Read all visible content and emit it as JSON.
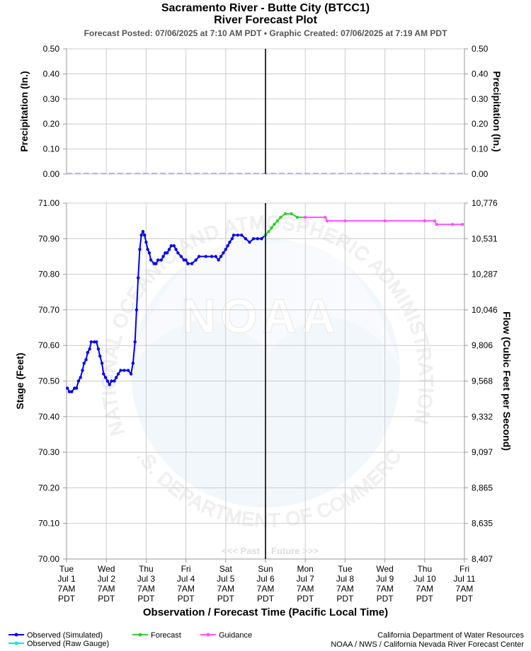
{
  "header": {
    "title": "Sacramento River - Butte City (BTCC1)",
    "subtitle": "River Forecast Plot",
    "posted": "Forecast Posted: 07/06/2025 at 7:10 AM PDT  •  Graphic Created: 07/06/2025 at 7:19 AM PDT"
  },
  "watermark": {
    "logo_text": "NOAA",
    "ring_text": "NATIONAL OCEANIC AND ATMOSPHERIC ADMINISTRATION",
    "ring_text_bottom": "U.S. DEPARTMENT OF COMMERCE"
  },
  "past_future": {
    "past": "<<< Past",
    "future": "Future >>>"
  },
  "legend": {
    "observed_sim": "Observed (Simulated)",
    "observed_raw": "Observed (Raw Gauge)",
    "forecast": "Forecast",
    "guidance": "Guidance"
  },
  "credits": {
    "line1": "California Department of Water Resources",
    "line2": "NOAA / NWS / California Nevada River Forecast Center"
  },
  "colors": {
    "observed": "#0000ee",
    "observed_raw": "#00e5ee",
    "forecast": "#33cc33",
    "guidance": "#ff55ff",
    "grid": "#cccccc",
    "now_line": "#333333",
    "precip_line": "#aaaaee"
  },
  "chart_data": [
    {
      "type": "line",
      "ylabel": "Precipitation (In.)",
      "ylabel_right": "Precipitation (In.)",
      "ylim": [
        0,
        0.5
      ],
      "y_ticks": [
        "0.00",
        "0.10",
        "0.20",
        "0.30",
        "0.40",
        "0.50"
      ],
      "grid": true,
      "series": [
        {
          "values": [
            [
              0,
              0
            ],
            [
              10,
              0
            ]
          ]
        }
      ]
    },
    {
      "type": "line",
      "xlabel": "Observation / Forecast Time (Pacific Local Time)",
      "ylabel": "Stage (Feet)",
      "ylabel_right": "Flow (Cubic Feet per Second)",
      "ylim": [
        70.0,
        71.0
      ],
      "xlim": [
        0,
        10
      ],
      "grid": true,
      "now_x": 5.0,
      "y_ticks": [
        "70.00",
        "70.10",
        "70.20",
        "70.30",
        "70.40",
        "70.50",
        "70.60",
        "70.70",
        "70.80",
        "70.90",
        "71.00"
      ],
      "y_ticks_right": [
        "8,407",
        "8,635",
        "8,865",
        "9,097",
        "9,332",
        "9,568",
        "9,806",
        "10,046",
        "10,287",
        "10,531",
        "10,776"
      ],
      "x_ticks": [
        [
          "Tue",
          "Jul 1",
          "7AM",
          "PDT"
        ],
        [
          "Wed",
          "Jul 2",
          "7AM",
          "PDT"
        ],
        [
          "Thu",
          "Jul 3",
          "7AM",
          "PDT"
        ],
        [
          "Fri",
          "Jul 4",
          "7AM",
          "PDT"
        ],
        [
          "Sat",
          "Jul 5",
          "7AM",
          "PDT"
        ],
        [
          "Sun",
          "Jul 6",
          "7AM",
          "PDT"
        ],
        [
          "Mon",
          "Jul 7",
          "7AM",
          "PDT"
        ],
        [
          "Tue",
          "Jul 8",
          "7AM",
          "PDT"
        ],
        [
          "Wed",
          "Jul 9",
          "7AM",
          "PDT"
        ],
        [
          "Thu",
          "Jul 10",
          "7AM",
          "PDT"
        ],
        [
          "Fri",
          "Jul 11",
          "7AM",
          "PDT"
        ]
      ],
      "series": [
        {
          "name": "Observed (Simulated)",
          "values": [
            [
              0.02,
              70.48
            ],
            [
              0.07,
              70.47
            ],
            [
              0.13,
              70.47
            ],
            [
              0.2,
              70.48
            ],
            [
              0.25,
              70.48
            ],
            [
              0.3,
              70.5
            ],
            [
              0.35,
              70.51
            ],
            [
              0.4,
              70.53
            ],
            [
              0.44,
              70.55
            ],
            [
              0.49,
              70.56
            ],
            [
              0.53,
              70.58
            ],
            [
              0.58,
              70.59
            ],
            [
              0.62,
              70.61
            ],
            [
              0.7,
              70.61
            ],
            [
              0.75,
              70.61
            ],
            [
              0.8,
              70.59
            ],
            [
              0.84,
              70.57
            ],
            [
              0.89,
              70.55
            ],
            [
              0.93,
              70.52
            ],
            [
              0.98,
              70.51
            ],
            [
              1.03,
              70.5
            ],
            [
              1.08,
              70.49
            ],
            [
              1.13,
              70.5
            ],
            [
              1.2,
              70.5
            ],
            [
              1.25,
              70.51
            ],
            [
              1.3,
              70.52
            ],
            [
              1.36,
              70.53
            ],
            [
              1.45,
              70.53
            ],
            [
              1.55,
              70.53
            ],
            [
              1.62,
              70.52
            ],
            [
              1.67,
              70.55
            ],
            [
              1.72,
              70.61
            ],
            [
              1.76,
              70.7
            ],
            [
              1.8,
              70.79
            ],
            [
              1.84,
              70.87
            ],
            [
              1.88,
              70.91
            ],
            [
              1.92,
              70.92
            ],
            [
              1.96,
              70.91
            ],
            [
              2.0,
              70.89
            ],
            [
              2.04,
              70.87
            ],
            [
              2.08,
              70.86
            ],
            [
              2.12,
              70.84
            ],
            [
              2.2,
              70.83
            ],
            [
              2.25,
              70.83
            ],
            [
              2.3,
              70.84
            ],
            [
              2.38,
              70.84
            ],
            [
              2.43,
              70.85
            ],
            [
              2.48,
              70.86
            ],
            [
              2.53,
              70.86
            ],
            [
              2.58,
              70.87
            ],
            [
              2.63,
              70.88
            ],
            [
              2.7,
              70.88
            ],
            [
              2.75,
              70.87
            ],
            [
              2.8,
              70.86
            ],
            [
              2.88,
              70.85
            ],
            [
              2.95,
              70.84
            ],
            [
              3.0,
              70.84
            ],
            [
              3.05,
              70.83
            ],
            [
              3.15,
              70.83
            ],
            [
              3.25,
              70.84
            ],
            [
              3.33,
              70.85
            ],
            [
              3.5,
              70.85
            ],
            [
              3.65,
              70.85
            ],
            [
              3.75,
              70.85
            ],
            [
              3.82,
              70.84
            ],
            [
              3.88,
              70.85
            ],
            [
              3.94,
              70.86
            ],
            [
              4.0,
              70.87
            ],
            [
              4.05,
              70.88
            ],
            [
              4.1,
              70.89
            ],
            [
              4.16,
              70.9
            ],
            [
              4.2,
              70.91
            ],
            [
              4.3,
              70.91
            ],
            [
              4.4,
              70.91
            ],
            [
              4.5,
              70.9
            ],
            [
              4.6,
              70.89
            ],
            [
              4.7,
              70.9
            ],
            [
              4.8,
              70.9
            ],
            [
              4.9,
              70.9
            ],
            [
              5.0,
              70.91
            ]
          ]
        },
        {
          "name": "Forecast",
          "values": [
            [
              5.0,
              70.91
            ],
            [
              5.08,
              70.92
            ],
            [
              5.15,
              70.93
            ],
            [
              5.22,
              70.94
            ],
            [
              5.3,
              70.95
            ],
            [
              5.38,
              70.96
            ],
            [
              5.5,
              70.97
            ],
            [
              5.65,
              70.97
            ],
            [
              5.8,
              70.96
            ],
            [
              6.0,
              70.96
            ]
          ]
        },
        {
          "name": "Guidance",
          "values": [
            [
              6.0,
              70.96
            ],
            [
              6.5,
              70.96
            ],
            [
              6.55,
              70.95
            ],
            [
              7.0,
              70.95
            ],
            [
              8.0,
              70.95
            ],
            [
              9.0,
              70.95
            ],
            [
              9.25,
              70.95
            ],
            [
              9.3,
              70.94
            ],
            [
              9.7,
              70.94
            ],
            [
              9.95,
              70.94
            ]
          ]
        }
      ]
    }
  ]
}
